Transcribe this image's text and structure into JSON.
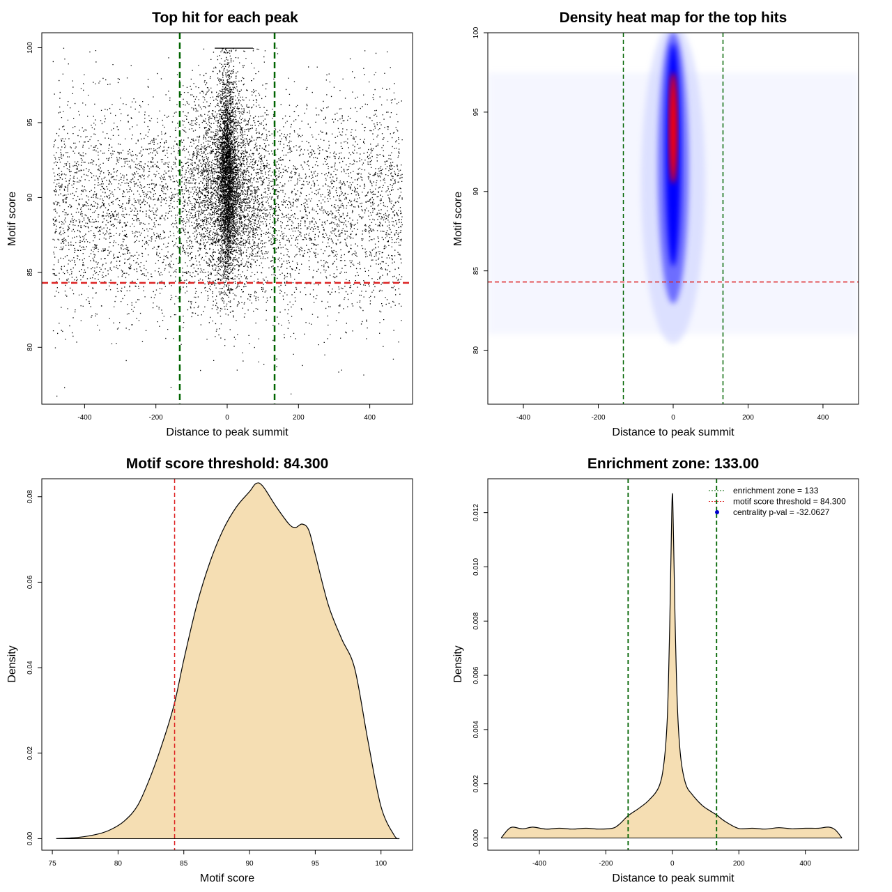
{
  "chart_data": [
    {
      "type": "scatter",
      "title": "Top hit for each peak",
      "xlabel": "Distance to peak summit",
      "ylabel": "Motif score",
      "xlim": [
        -520,
        520
      ],
      "ylim": [
        76.2,
        101
      ],
      "xticks": [
        -400,
        -200,
        0,
        200,
        400
      ],
      "xtick_labels": [
        "-400",
        "-200",
        "0",
        "200",
        "400"
      ],
      "yticks": [
        80,
        85,
        90,
        95,
        100
      ],
      "ytick_labels": [
        "80",
        "85",
        "90",
        "95",
        "100"
      ],
      "vlines": [
        -133,
        133
      ],
      "vline_color": "#006400",
      "hline": 84.3,
      "hline_color": "#dd2222",
      "point_color": "#000000",
      "description_values": {
        "center": 0,
        "spread_x": [
          -500,
          500
        ],
        "score_range": [
          76.5,
          100
        ]
      }
    },
    {
      "type": "heatmap",
      "title": "Density heat map for the top hits",
      "xlabel": "Distance to peak summit",
      "ylabel": "Motif score",
      "xlim": [
        -495,
        495
      ],
      "ylim": [
        76.6,
        100
      ],
      "xticks": [
        -400,
        -200,
        0,
        200,
        400
      ],
      "xtick_labels": [
        "-400",
        "-200",
        "0",
        "200",
        "400"
      ],
      "yticks": [
        80,
        85,
        90,
        95,
        100
      ],
      "ytick_labels": [
        "80",
        "85",
        "90",
        "95",
        "100"
      ],
      "vlines": [
        -133,
        133
      ],
      "vline_color": "#006400",
      "hline": 84.3,
      "hline_color": "#dd2222",
      "peak_center": [
        0,
        94
      ],
      "colors": [
        "#ffffff",
        "#0000ff",
        "#ff0000"
      ]
    },
    {
      "type": "area",
      "title": "Motif score threshold: 84.300",
      "xlabel": "Motif score",
      "ylabel": "Density",
      "xlim": [
        74.2,
        102.4
      ],
      "ylim": [
        -0.0027,
        0.0842
      ],
      "xticks": [
        75,
        80,
        85,
        90,
        95,
        100
      ],
      "xtick_labels": [
        "75",
        "80",
        "85",
        "90",
        "95",
        "100"
      ],
      "yticks": [
        0,
        0.02,
        0.04,
        0.06,
        0.08
      ],
      "ytick_labels": [
        "0.00",
        "0.02",
        "0.04",
        "0.06",
        "0.08"
      ],
      "vline": 84.3,
      "vline_color": "#dd2222",
      "fill": "#f5deb3",
      "x": [
        75.3,
        77,
        78.5,
        79.5,
        80.5,
        81.5,
        82.5,
        83.5,
        84.3,
        85,
        86,
        87,
        88,
        89,
        90,
        90.5,
        91,
        92,
        93,
        93.5,
        94,
        94.5,
        95,
        96,
        97,
        98,
        99,
        100,
        101,
        101.4
      ],
      "y": [
        0,
        0.0003,
        0.0011,
        0.0022,
        0.0042,
        0.0078,
        0.0148,
        0.0235,
        0.0318,
        0.0418,
        0.0548,
        0.0648,
        0.0723,
        0.0776,
        0.0812,
        0.0831,
        0.0825,
        0.0778,
        0.0736,
        0.0728,
        0.0736,
        0.0722,
        0.0665,
        0.0546,
        0.0468,
        0.0398,
        0.023,
        0.0075,
        0.0008,
        0
      ],
      "points": [
        {
          "x": 75.3,
          "y": 0
        },
        {
          "x": 77,
          "y": 0.0003
        },
        {
          "x": 78.5,
          "y": 0.0011
        },
        {
          "x": 79.5,
          "y": 0.0022
        },
        {
          "x": 80.5,
          "y": 0.0042
        },
        {
          "x": 81.5,
          "y": 0.0078
        },
        {
          "x": 82.5,
          "y": 0.0148
        },
        {
          "x": 83.5,
          "y": 0.0235
        },
        {
          "x": 84.3,
          "y": 0.0318
        },
        {
          "x": 85,
          "y": 0.0418
        },
        {
          "x": 86,
          "y": 0.0548
        },
        {
          "x": 87,
          "y": 0.0648
        },
        {
          "x": 88,
          "y": 0.0723
        },
        {
          "x": 89,
          "y": 0.0776
        },
        {
          "x": 90,
          "y": 0.0812
        },
        {
          "x": 90.5,
          "y": 0.0831
        },
        {
          "x": 91,
          "y": 0.0825
        },
        {
          "x": 92,
          "y": 0.0778
        },
        {
          "x": 93,
          "y": 0.0736
        },
        {
          "x": 93.5,
          "y": 0.0728
        },
        {
          "x": 94,
          "y": 0.0736
        },
        {
          "x": 94.5,
          "y": 0.0722
        },
        {
          "x": 95,
          "y": 0.0665
        },
        {
          "x": 96,
          "y": 0.0546
        },
        {
          "x": 97,
          "y": 0.0468
        },
        {
          "x": 98,
          "y": 0.0398
        },
        {
          "x": 99,
          "y": 0.023
        },
        {
          "x": 100,
          "y": 0.0075
        },
        {
          "x": 101,
          "y": 0.0008
        },
        {
          "x": 101.4,
          "y": 0
        }
      ]
    },
    {
      "type": "area",
      "title": "Enrichment zone: 133.00",
      "xlabel": "Distance to peak summit",
      "ylabel": "Density",
      "xlim": [
        -555,
        560
      ],
      "ylim": [
        -0.00045,
        0.01325
      ],
      "xticks": [
        -400,
        -200,
        0,
        200,
        400
      ],
      "xtick_labels": [
        "-400",
        "-200",
        "0",
        "200",
        "400"
      ],
      "yticks": [
        0,
        0.002,
        0.004,
        0.006,
        0.008,
        0.01,
        0.012
      ],
      "ytick_labels": [
        "0.000",
        "0.002",
        "0.004",
        "0.006",
        "0.008",
        "0.010",
        "0.012"
      ],
      "vlines": [
        -133,
        133
      ],
      "vline_color": "#006400",
      "fill": "#f5deb3",
      "points": [
        {
          "x": -515,
          "y": 0
        },
        {
          "x": -495,
          "y": 0.0003
        },
        {
          "x": -480,
          "y": 0.0004
        },
        {
          "x": -450,
          "y": 0.00034
        },
        {
          "x": -420,
          "y": 0.0004
        },
        {
          "x": -380,
          "y": 0.00033
        },
        {
          "x": -340,
          "y": 0.00036
        },
        {
          "x": -300,
          "y": 0.00033
        },
        {
          "x": -260,
          "y": 0.00036
        },
        {
          "x": -220,
          "y": 0.00033
        },
        {
          "x": -180,
          "y": 0.00036
        },
        {
          "x": -160,
          "y": 0.0005
        },
        {
          "x": -133,
          "y": 0.00082
        },
        {
          "x": -100,
          "y": 0.0011
        },
        {
          "x": -70,
          "y": 0.0014
        },
        {
          "x": -40,
          "y": 0.0019
        },
        {
          "x": -25,
          "y": 0.0028
        },
        {
          "x": -15,
          "y": 0.0045
        },
        {
          "x": -8,
          "y": 0.0078
        },
        {
          "x": -3,
          "y": 0.0112
        },
        {
          "x": 0,
          "y": 0.0127
        },
        {
          "x": 3,
          "y": 0.0115
        },
        {
          "x": 8,
          "y": 0.0082
        },
        {
          "x": 15,
          "y": 0.0049
        },
        {
          "x": 25,
          "y": 0.003
        },
        {
          "x": 40,
          "y": 0.002
        },
        {
          "x": 60,
          "y": 0.0016
        },
        {
          "x": 90,
          "y": 0.0012
        },
        {
          "x": 120,
          "y": 0.00095
        },
        {
          "x": 133,
          "y": 0.00085
        },
        {
          "x": 160,
          "y": 0.0006
        },
        {
          "x": 200,
          "y": 0.00035
        },
        {
          "x": 240,
          "y": 0.00036
        },
        {
          "x": 280,
          "y": 0.00033
        },
        {
          "x": 320,
          "y": 0.00038
        },
        {
          "x": 360,
          "y": 0.00034
        },
        {
          "x": 400,
          "y": 0.00036
        },
        {
          "x": 440,
          "y": 0.00036
        },
        {
          "x": 470,
          "y": 0.0004
        },
        {
          "x": 490,
          "y": 0.0003
        },
        {
          "x": 510,
          "y": 0
        }
      ],
      "legend": [
        {
          "label": "enrichment zone = 133",
          "color": "#006400",
          "style": "dotted"
        },
        {
          "label": "motif score threshold = 84.300",
          "color": "#dd2222",
          "style": "dotted"
        },
        {
          "label": "centrality p-val = -32.0627",
          "color": "#0000cd",
          "style": "point"
        }
      ],
      "legend_position": "top-right"
    }
  ]
}
